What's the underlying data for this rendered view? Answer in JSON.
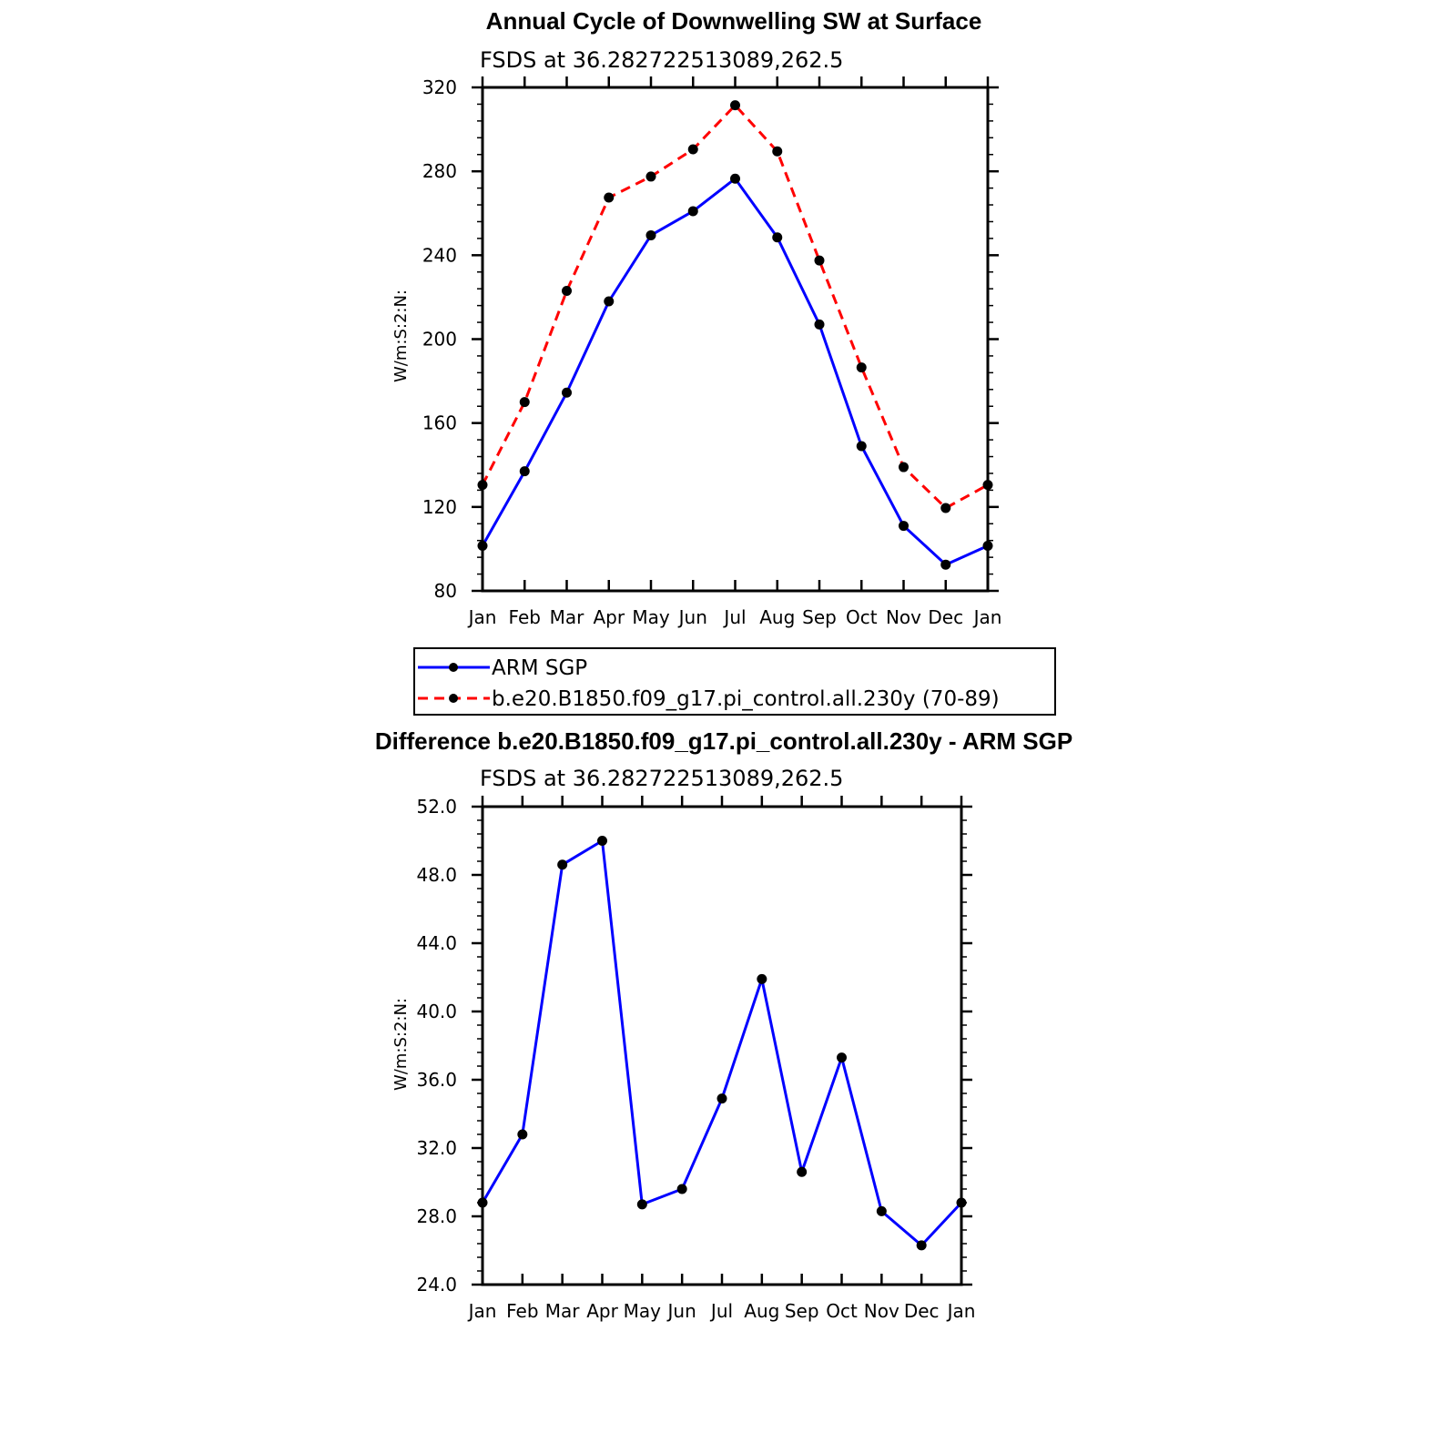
{
  "colors": {
    "obs": "#0000ff",
    "model": "#ff0000",
    "marker": "#000000"
  },
  "chart_data": [
    {
      "type": "line",
      "title": "Annual Cycle of Downwelling SW at Surface",
      "subtitle": "FSDS at 36.282722513089,262.5",
      "ylabel": "W/m:S:2:N:",
      "xlabel": "",
      "categories": [
        "Jan",
        "Feb",
        "Mar",
        "Apr",
        "May",
        "Jun",
        "Jul",
        "Aug",
        "Sep",
        "Oct",
        "Nov",
        "Dec",
        "Jan"
      ],
      "ylim": [
        80,
        320
      ],
      "yticks": [
        80,
        120,
        160,
        200,
        240,
        280,
        320
      ],
      "ytick_labels": [
        "80",
        "120",
        "160",
        "200",
        "240",
        "280",
        "320"
      ],
      "series": [
        {
          "name": "ARM SGP",
          "style": "solid",
          "color": "#0000ff",
          "values": [
            101.5,
            137,
            174.5,
            218,
            249.5,
            261,
            276.5,
            248.5,
            207,
            149,
            111,
            92.5,
            101.5
          ]
        },
        {
          "name": "b.e20.B1850.f09_g17.pi_control.all.230y (70-89)",
          "style": "dashed",
          "color": "#ff0000",
          "values": [
            130.5,
            170,
            223,
            267.5,
            277.5,
            290.5,
            311.5,
            289.5,
            237.5,
            186.5,
            139,
            119.5,
            130.5
          ]
        }
      ],
      "legend": "bottom"
    },
    {
      "type": "line",
      "title": "Difference b.e20.B1850.f09_g17.pi_control.all.230y - ARM SGP",
      "subtitle": "FSDS at 36.282722513089,262.5",
      "ylabel": "W/m:S:2:N:",
      "xlabel": "",
      "categories": [
        "Jan",
        "Feb",
        "Mar",
        "Apr",
        "May",
        "Jun",
        "Jul",
        "Aug",
        "Sep",
        "Oct",
        "Nov",
        "Dec",
        "Jan"
      ],
      "ylim": [
        24,
        52
      ],
      "yticks": [
        24,
        28,
        32,
        36,
        40,
        44,
        48,
        52
      ],
      "ytick_labels": [
        "24.0",
        "28.0",
        "32.0",
        "36.0",
        "40.0",
        "44.0",
        "48.0",
        "52.0"
      ],
      "series": [
        {
          "style": "solid",
          "color": "#0000ff",
          "values": [
            28.8,
            32.8,
            48.6,
            50.0,
            28.7,
            29.6,
            34.9,
            41.9,
            30.6,
            37.3,
            28.3,
            26.3,
            28.8
          ]
        }
      ]
    }
  ]
}
